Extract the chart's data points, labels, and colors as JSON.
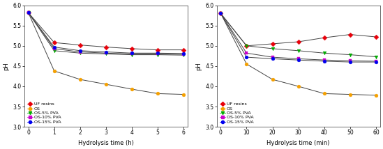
{
  "left": {
    "xlabel": "Hydrolysis time (h)",
    "ylabel": "pH",
    "xlim": [
      -0.15,
      6.15
    ],
    "ylim": [
      3.0,
      6.0
    ],
    "yticks": [
      3.0,
      3.5,
      4.0,
      4.5,
      5.0,
      5.5,
      6.0
    ],
    "xticks": [
      0,
      1,
      2,
      3,
      4,
      5,
      6
    ],
    "series": {
      "UF resins": {
        "x": [
          0,
          1,
          2,
          3,
          4,
          5,
          6
        ],
        "y": [
          5.82,
          5.08,
          5.02,
          4.97,
          4.93,
          4.9,
          4.9
        ],
        "color": "#e8000a",
        "marker": "D",
        "markersize": 3.5
      },
      "OS": {
        "x": [
          0,
          1,
          2,
          3,
          4,
          5,
          6
        ],
        "y": [
          5.82,
          4.38,
          4.17,
          4.05,
          3.93,
          3.82,
          3.8
        ],
        "color": "#f5a000",
        "marker": "o",
        "markersize": 3.5
      },
      "OS-5% PVA": {
        "x": [
          0,
          1,
          2,
          3,
          4,
          5,
          6
        ],
        "y": [
          5.82,
          4.88,
          4.82,
          4.8,
          4.78,
          4.78,
          4.77
        ],
        "color": "#00aa00",
        "marker": "v",
        "markersize": 3.5
      },
      "OS-10% PVA": {
        "x": [
          0,
          1,
          2,
          3,
          4,
          5,
          6
        ],
        "y": [
          5.82,
          4.93,
          4.85,
          4.82,
          4.8,
          4.8,
          4.79
        ],
        "color": "#cc00cc",
        "marker": "s",
        "markersize": 3.5
      },
      "OS-15% PVA": {
        "x": [
          0,
          1,
          2,
          3,
          4,
          5,
          6
        ],
        "y": [
          5.82,
          4.97,
          4.88,
          4.85,
          4.82,
          4.82,
          4.81
        ],
        "color": "#0000ee",
        "marker": "o",
        "markersize": 3.5
      }
    }
  },
  "right": {
    "xlabel": "Hydrolysis time (min)",
    "ylabel": "pH",
    "xlim": [
      -1.5,
      61.5
    ],
    "ylim": [
      3.0,
      6.0
    ],
    "yticks": [
      3.0,
      3.5,
      4.0,
      4.5,
      5.0,
      5.5,
      6.0
    ],
    "xticks": [
      0,
      10,
      20,
      30,
      40,
      50,
      60
    ],
    "series": {
      "UF resins": {
        "x": [
          0,
          10,
          20,
          30,
          40,
          50,
          60
        ],
        "y": [
          5.8,
          5.0,
          5.05,
          5.1,
          5.2,
          5.28,
          5.22
        ],
        "color": "#e8000a",
        "marker": "D",
        "markersize": 3.5
      },
      "OS": {
        "x": [
          0,
          10,
          20,
          30,
          40,
          50,
          60
        ],
        "y": [
          5.8,
          4.55,
          4.17,
          4.0,
          3.82,
          3.8,
          3.78
        ],
        "color": "#f5a000",
        "marker": "o",
        "markersize": 3.5
      },
      "OS-5% PVA": {
        "x": [
          0,
          10,
          20,
          30,
          40,
          50,
          60
        ],
        "y": [
          5.8,
          5.0,
          4.93,
          4.88,
          4.82,
          4.78,
          4.73
        ],
        "color": "#00aa00",
        "marker": "v",
        "markersize": 3.5
      },
      "OS-10% PVA": {
        "x": [
          0,
          10,
          20,
          30,
          40,
          50,
          60
        ],
        "y": [
          5.8,
          4.82,
          4.72,
          4.68,
          4.65,
          4.63,
          4.62
        ],
        "color": "#cc00cc",
        "marker": "s",
        "markersize": 3.5
      },
      "OS-15% PVA": {
        "x": [
          0,
          10,
          20,
          30,
          40,
          50,
          60
        ],
        "y": [
          5.8,
          4.72,
          4.68,
          4.65,
          4.62,
          4.6,
          4.6
        ],
        "color": "#0000ee",
        "marker": "o",
        "markersize": 3.5
      }
    }
  },
  "legend_order": [
    "UF resins",
    "OS",
    "OS-5% PVA",
    "OS-10% PVA",
    "OS-15% PVA"
  ],
  "line_color": "#444444",
  "line_width": 0.7,
  "background_color": "#ffffff"
}
